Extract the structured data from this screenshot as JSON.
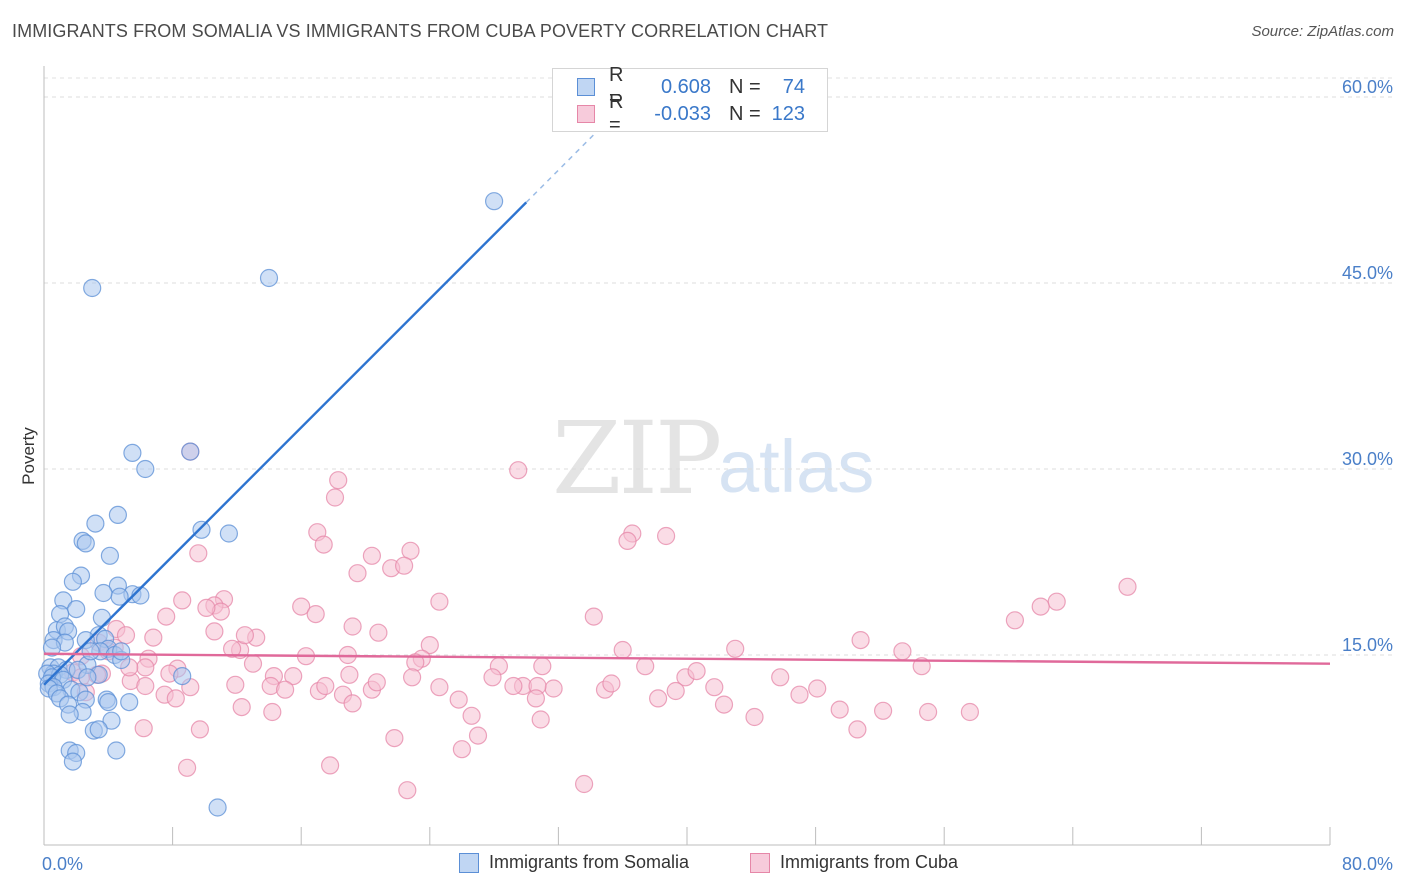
{
  "title": "IMMIGRANTS FROM SOMALIA VS IMMIGRANTS FROM CUBA POVERTY CORRELATION CHART",
  "source": "Source: ZipAtlas.com",
  "watermark": {
    "zip": "ZIP",
    "atlas": "atlas"
  },
  "colors": {
    "blue": "#5b8fd6",
    "blue_fill": "#a9c6ee",
    "blue_line": "#2e74d0",
    "pink": "#e687a8",
    "pink_fill": "#f5c0d2",
    "pink_line": "#e0699a",
    "tick": "#4a7fc8"
  },
  "legend": {
    "rows": [
      {
        "r_label": "R =",
        "r_value": "0.608",
        "n_label": "N =",
        "n_value": "74"
      },
      {
        "r_label": "R =",
        "r_value": "-0.033",
        "n_label": "N =",
        "n_value": "123"
      }
    ]
  },
  "bottom_legend": {
    "series1": "Immigrants from Somalia",
    "series2": "Immigrants from Cuba"
  },
  "chart_data": {
    "type": "scatter",
    "title": "IMMIGRANTS FROM SOMALIA VS IMMIGRANTS FROM CUBA POVERTY CORRELATION CHART",
    "xlabel": "",
    "ylabel": "Poverty",
    "xlim": [
      0,
      80
    ],
    "ylim": [
      0,
      61.5
    ],
    "x_tick_labels": {
      "left": "0.0%",
      "right": "80.0%"
    },
    "y_ticks": [
      {
        "value": 15,
        "label": "15.0%"
      },
      {
        "value": 30,
        "label": "30.0%"
      },
      {
        "value": 45,
        "label": "45.0%"
      },
      {
        "value": 60,
        "label": "60.0%"
      }
    ],
    "series": [
      {
        "name": "Immigrants from Somalia",
        "r": 0.608,
        "n": 74,
        "trend": {
          "x0": 0,
          "y0": 12.6,
          "x1": 30,
          "y1": 51.5,
          "dash_to_x": 35,
          "dash_to_y": 58
        },
        "points": [
          [
            28,
            51.6
          ],
          [
            14,
            45.4
          ],
          [
            3,
            44.6
          ],
          [
            5.5,
            31.3
          ],
          [
            6.3,
            30.0
          ],
          [
            4.6,
            26.3
          ],
          [
            3.2,
            25.6
          ],
          [
            2.4,
            24.2
          ],
          [
            2.6,
            24.0
          ],
          [
            9.8,
            25.1
          ],
          [
            11.5,
            24.8
          ],
          [
            4.1,
            23.0
          ],
          [
            2.3,
            21.4
          ],
          [
            1.8,
            20.9
          ],
          [
            5.5,
            19.9
          ],
          [
            4.6,
            20.6
          ],
          [
            4.7,
            19.7
          ],
          [
            3.7,
            20.0
          ],
          [
            1.2,
            19.4
          ],
          [
            2.0,
            18.7
          ],
          [
            1.0,
            18.3
          ],
          [
            3.6,
            18.0
          ],
          [
            0.8,
            17.0
          ],
          [
            1.3,
            17.3
          ],
          [
            1.5,
            16.9
          ],
          [
            3.4,
            16.6
          ],
          [
            3.8,
            16.3
          ],
          [
            0.6,
            16.2
          ],
          [
            1.3,
            16.0
          ],
          [
            0.5,
            15.6
          ],
          [
            2.6,
            16.2
          ],
          [
            4.0,
            15.5
          ],
          [
            3.5,
            15.3
          ],
          [
            4.4,
            15.0
          ],
          [
            4.8,
            14.6
          ],
          [
            2.7,
            14.2
          ],
          [
            0.4,
            14.0
          ],
          [
            0.9,
            14.0
          ],
          [
            1.4,
            13.8
          ],
          [
            0.6,
            13.5
          ],
          [
            0.2,
            13.5
          ],
          [
            2.1,
            13.8
          ],
          [
            3.4,
            13.4
          ],
          [
            2.7,
            13.2
          ],
          [
            1.0,
            13.4
          ],
          [
            0.5,
            13.2
          ],
          [
            1.2,
            13.0
          ],
          [
            0.3,
            12.7
          ],
          [
            0.6,
            12.4
          ],
          [
            0.3,
            12.3
          ],
          [
            1.7,
            12.2
          ],
          [
            2.2,
            12.0
          ],
          [
            0.8,
            11.9
          ],
          [
            1.0,
            11.5
          ],
          [
            3.9,
            11.4
          ],
          [
            5.3,
            11.2
          ],
          [
            4.0,
            11.2
          ],
          [
            2.6,
            11.4
          ],
          [
            1.5,
            11.0
          ],
          [
            2.4,
            10.4
          ],
          [
            1.6,
            10.2
          ],
          [
            4.2,
            9.7
          ],
          [
            3.1,
            8.9
          ],
          [
            3.4,
            9.0
          ],
          [
            1.6,
            7.3
          ],
          [
            2.0,
            7.1
          ],
          [
            4.5,
            7.3
          ],
          [
            1.8,
            6.4
          ],
          [
            8.6,
            13.3
          ],
          [
            6.0,
            19.8
          ],
          [
            4.8,
            15.3
          ],
          [
            2.9,
            15.3
          ],
          [
            10.8,
            2.7
          ],
          [
            9.1,
            31.4
          ]
        ]
      },
      {
        "name": "Immigrants from Cuba",
        "r": -0.033,
        "n": 123,
        "trend": {
          "x0": 0,
          "y0": 15.1,
          "x1": 80,
          "y1": 14.3
        },
        "points": [
          [
            9.1,
            31.4
          ],
          [
            18.3,
            29.1
          ],
          [
            18.1,
            27.7
          ],
          [
            29.5,
            29.9
          ],
          [
            36.6,
            24.8
          ],
          [
            38.7,
            24.6
          ],
          [
            36.3,
            24.2
          ],
          [
            17.0,
            24.9
          ],
          [
            17.4,
            23.9
          ],
          [
            22.8,
            23.4
          ],
          [
            9.6,
            23.2
          ],
          [
            20.4,
            23.0
          ],
          [
            21.6,
            22.0
          ],
          [
            22.4,
            22.2
          ],
          [
            19.5,
            21.6
          ],
          [
            67.4,
            20.5
          ],
          [
            63.0,
            19.3
          ],
          [
            62.0,
            18.9
          ],
          [
            8.6,
            19.4
          ],
          [
            11.2,
            19.5
          ],
          [
            24.6,
            19.3
          ],
          [
            10.6,
            19.0
          ],
          [
            16.0,
            18.9
          ],
          [
            11.0,
            18.5
          ],
          [
            10.1,
            18.8
          ],
          [
            7.6,
            18.1
          ],
          [
            16.9,
            18.3
          ],
          [
            34.2,
            18.1
          ],
          [
            60.4,
            17.8
          ],
          [
            19.2,
            17.3
          ],
          [
            4.5,
            17.1
          ],
          [
            10.6,
            16.9
          ],
          [
            20.8,
            16.8
          ],
          [
            13.2,
            16.4
          ],
          [
            5.1,
            16.6
          ],
          [
            6.8,
            16.4
          ],
          [
            3.4,
            16.0
          ],
          [
            4.4,
            15.6
          ],
          [
            24.0,
            15.8
          ],
          [
            12.2,
            15.4
          ],
          [
            18.9,
            15.0
          ],
          [
            36.0,
            15.4
          ],
          [
            50.8,
            16.2
          ],
          [
            43.0,
            15.5
          ],
          [
            53.4,
            15.3
          ],
          [
            4.0,
            15.3
          ],
          [
            16.3,
            14.9
          ],
          [
            2.3,
            14.9
          ],
          [
            6.5,
            14.7
          ],
          [
            23.5,
            14.7
          ],
          [
            23.1,
            14.4
          ],
          [
            28.3,
            14.1
          ],
          [
            31.0,
            14.1
          ],
          [
            37.4,
            14.1
          ],
          [
            54.6,
            14.1
          ],
          [
            6.3,
            14.0
          ],
          [
            8.3,
            13.9
          ],
          [
            7.8,
            13.5
          ],
          [
            3.6,
            13.5
          ],
          [
            15.5,
            13.3
          ],
          [
            14.3,
            13.3
          ],
          [
            19.0,
            13.4
          ],
          [
            22.9,
            13.2
          ],
          [
            27.9,
            13.2
          ],
          [
            39.9,
            13.2
          ],
          [
            40.6,
            13.7
          ],
          [
            45.8,
            13.2
          ],
          [
            1.8,
            13.6
          ],
          [
            3.3,
            13.4
          ],
          [
            2.3,
            13.2
          ],
          [
            5.4,
            12.9
          ],
          [
            9.1,
            12.4
          ],
          [
            11.9,
            12.6
          ],
          [
            6.3,
            12.5
          ],
          [
            14.1,
            12.5
          ],
          [
            15.0,
            12.2
          ],
          [
            17.1,
            12.1
          ],
          [
            20.4,
            12.2
          ],
          [
            24.6,
            12.4
          ],
          [
            29.8,
            12.5
          ],
          [
            31.7,
            12.3
          ],
          [
            34.9,
            12.2
          ],
          [
            39.3,
            12.1
          ],
          [
            41.7,
            12.4
          ],
          [
            48.1,
            12.3
          ],
          [
            2.6,
            12.0
          ],
          [
            7.5,
            11.8
          ],
          [
            18.6,
            11.8
          ],
          [
            35.3,
            12.7
          ],
          [
            30.7,
            12.5
          ],
          [
            47.0,
            11.8
          ],
          [
            30.6,
            11.5
          ],
          [
            38.2,
            11.5
          ],
          [
            42.3,
            11.0
          ],
          [
            49.5,
            10.6
          ],
          [
            52.2,
            10.5
          ],
          [
            55.0,
            10.4
          ],
          [
            57.6,
            10.4
          ],
          [
            12.3,
            10.8
          ],
          [
            14.2,
            10.4
          ],
          [
            19.2,
            11.1
          ],
          [
            26.6,
            10.1
          ],
          [
            44.2,
            10.0
          ],
          [
            30.9,
            9.8
          ],
          [
            50.6,
            9.0
          ],
          [
            6.2,
            9.1
          ],
          [
            9.7,
            9.0
          ],
          [
            27.0,
            8.5
          ],
          [
            21.8,
            8.3
          ],
          [
            26.0,
            7.4
          ],
          [
            17.8,
            6.1
          ],
          [
            8.9,
            5.9
          ],
          [
            22.6,
            4.1
          ],
          [
            33.6,
            4.6
          ],
          [
            8.2,
            11.5
          ],
          [
            13.0,
            14.3
          ],
          [
            17.5,
            12.5
          ],
          [
            25.8,
            11.4
          ],
          [
            20.7,
            12.8
          ],
          [
            11.7,
            15.5
          ],
          [
            12.5,
            16.6
          ],
          [
            5.3,
            14.0
          ],
          [
            29.2,
            12.5
          ]
        ]
      }
    ]
  }
}
